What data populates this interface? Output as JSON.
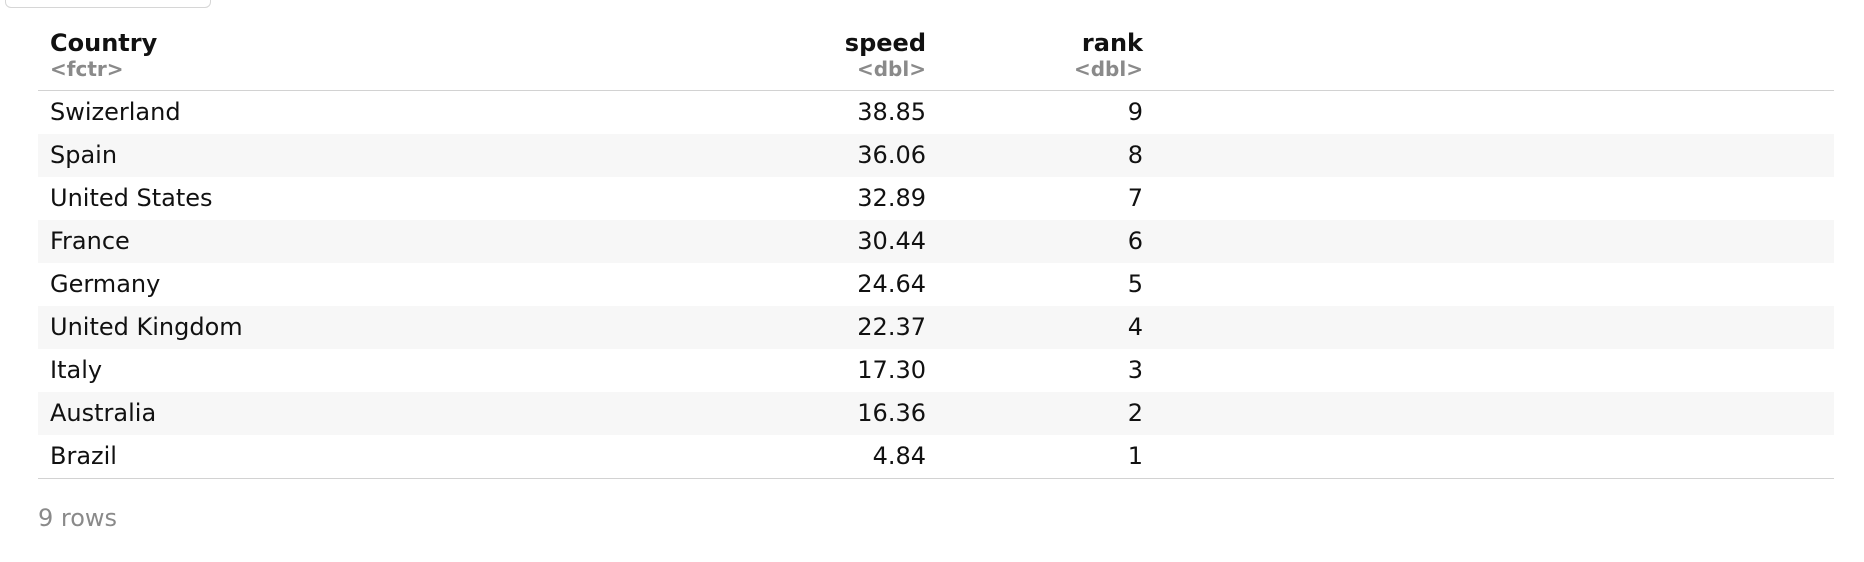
{
  "table": {
    "columns": [
      {
        "name": "Country",
        "type": "<fctr>"
      },
      {
        "name": "speed",
        "type": "<dbl>"
      },
      {
        "name": "rank",
        "type": "<dbl>"
      }
    ],
    "rows": [
      [
        "Swizerland",
        "38.85",
        "9"
      ],
      [
        "Spain",
        "36.06",
        "8"
      ],
      [
        "United States",
        "32.89",
        "7"
      ],
      [
        "France",
        "30.44",
        "6"
      ],
      [
        "Germany",
        "24.64",
        "5"
      ],
      [
        "United Kingdom",
        "22.37",
        "4"
      ],
      [
        "Italy",
        "17.30",
        "3"
      ],
      [
        "Australia",
        "16.36",
        "2"
      ],
      [
        "Brazil",
        "4.84",
        "1"
      ]
    ]
  },
  "footer": {
    "row_count": "9 rows"
  }
}
